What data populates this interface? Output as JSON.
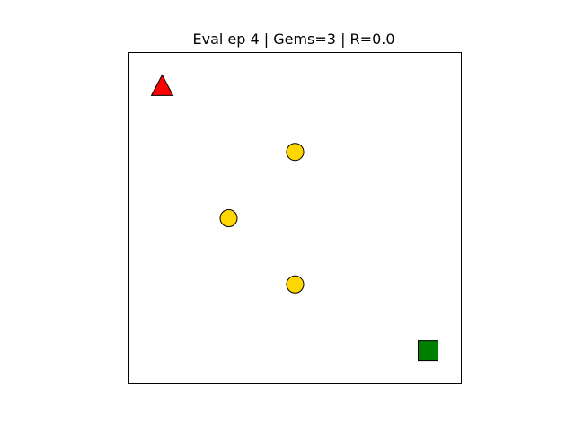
{
  "title": "Eval ep 4 | Gems=3 | R=0.0",
  "episode": 4,
  "gems": 3,
  "reward": 0.0,
  "grid": {
    "size": [
      5,
      5
    ],
    "show_grid": false,
    "border_color": "#000000",
    "background": "#ffffff"
  },
  "agent": {
    "shape": "triangle",
    "cell": [
      0,
      0
    ],
    "color": "#ff0000"
  },
  "gems_list": [
    {
      "cell": [
        2,
        1
      ],
      "color": "#ffd700"
    },
    {
      "cell": [
        1,
        2
      ],
      "color": "#ffd700"
    },
    {
      "cell": [
        2,
        3
      ],
      "color": "#ffd700"
    }
  ],
  "goal": {
    "shape": "square",
    "cell": [
      4,
      4
    ],
    "color": "#008000"
  }
}
